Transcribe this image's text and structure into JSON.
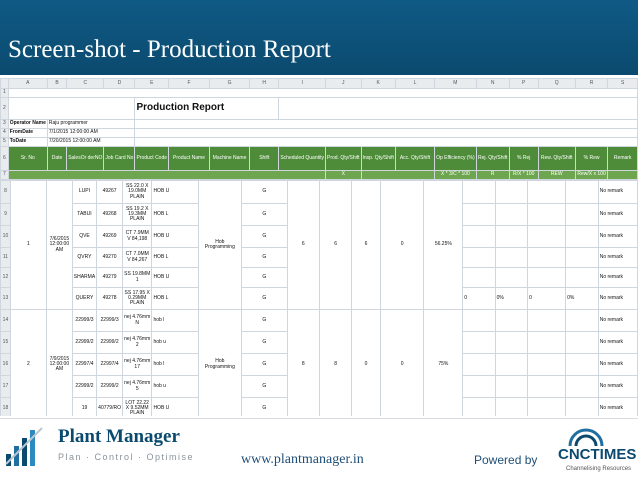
{
  "slide": {
    "title": "Screen-shot - Production Report"
  },
  "sheet": {
    "col_letters": [
      "A",
      "B",
      "C",
      "D",
      "E",
      "F",
      "G",
      "H",
      "I",
      "J",
      "K",
      "L",
      "M",
      "N",
      "P",
      "Q",
      "R",
      "S"
    ],
    "report_title": "Production Report",
    "operator_label": "Operator Name",
    "operator_value": "Raju programmer",
    "from_label": "FromDate",
    "from_value": "7/1/2015 12:00:00 AM",
    "to_label": "ToDate",
    "to_value": "7/20/2015 12:00:00 AM",
    "headers": [
      "Sr. No",
      "Date",
      "SalesOr derNO",
      "Job Card No",
      "Product Code",
      "Product Name",
      "Machine Name",
      "Shift",
      "Scheduled Quantity",
      "Prod. Qty/Shift",
      "Insp. Qty/Shift",
      "Acc. Qty/Shift",
      "Op Efficiency (%)",
      "Rej. Qty/Shift",
      "% Rej",
      "Rew. Qty/Shift",
      "% Rew",
      "Remark"
    ],
    "formula_row": {
      "J": "X",
      "M": "X * 3/C * 100",
      "N": "R",
      "P": "R/X * 100",
      "Q": "REW",
      "R": "Rew/X x 100"
    },
    "group1": {
      "sr": "1",
      "date": "7/6/2015 12:00:00 AM",
      "machine": "Hob Programming",
      "sched": "6",
      "prod": "6",
      "insp": "6",
      "acc": "0",
      "eff": "56.25%",
      "rej": "0",
      "pct_rej": "0%",
      "rew": "0",
      "pct_rew": "0%",
      "rows": [
        {
          "so": "LUPI",
          "jc": "49267",
          "code": "SS 22.0 X 19.0MM PLAIN",
          "name": "HOB U",
          "shift": "G",
          "remark": "No remark"
        },
        {
          "so": "TABUI",
          "jc": "49268",
          "code": "SS 19.2 X 19.3MM PLAIN",
          "name": "HOB L",
          "shift": "G",
          "remark": "No remark"
        },
        {
          "so": "QVE",
          "jc": "49269",
          "code": "CT 7.9MM V 84,198",
          "name": "HOB U",
          "shift": "G",
          "remark": "No remark"
        },
        {
          "so": "QVRY",
          "jc": "49270",
          "code": "CT 7.0MM V 84,267",
          "name": "HOB L",
          "shift": "G",
          "remark": "No remark"
        },
        {
          "so": "SHARMA",
          "jc": "49279",
          "code": "SS 19.8MM 1",
          "name": "HOB U",
          "shift": "G",
          "remark": "No remark"
        },
        {
          "so": "QUERY",
          "jc": "49278",
          "code": "SS 17.95 X 0.29MM PLAIN",
          "name": "HOB L",
          "shift": "G",
          "remark": "No remark"
        }
      ]
    },
    "group2": {
      "sr": "2",
      "date": "7/9/2015 12:00:00 AM",
      "machine": "Hob Programming",
      "sched": "8",
      "prod": "8",
      "insp": "0",
      "acc": "0",
      "eff": "75%",
      "rows": [
        {
          "so": "22999/3",
          "jc": "22999/3",
          "code": "nej 4.76mm N",
          "name": "hob l",
          "shift": "G",
          "remark": "No remark"
        },
        {
          "so": "22999/2",
          "jc": "22999/2",
          "code": "nej 4.76mm 2",
          "name": "hob u",
          "shift": "G",
          "remark": "No remark"
        },
        {
          "so": "22997/4",
          "jc": "22997/4",
          "code": "nej 4.76mm 17",
          "name": "hob l",
          "shift": "G",
          "remark": "No remark"
        },
        {
          "so": "22999/2",
          "jc": "22999/2",
          "code": "nej 4.76mm 5",
          "name": "hob u",
          "shift": "G",
          "remark": "No remark"
        },
        {
          "so": "19",
          "jc": "40779/RO",
          "code": "LOT 22.22 X 9.52MM PLAIN",
          "name": "HOB U",
          "shift": "G",
          "remark": "No remark"
        }
      ]
    }
  },
  "footer": {
    "brand": "Plant Manager",
    "tagline": "Plan · Control · Optimise",
    "website": "www.plantmanager.in",
    "powered_by": "Powered by",
    "partner": "CNCTIMES",
    "partner_sub": "Channelising Resources"
  }
}
